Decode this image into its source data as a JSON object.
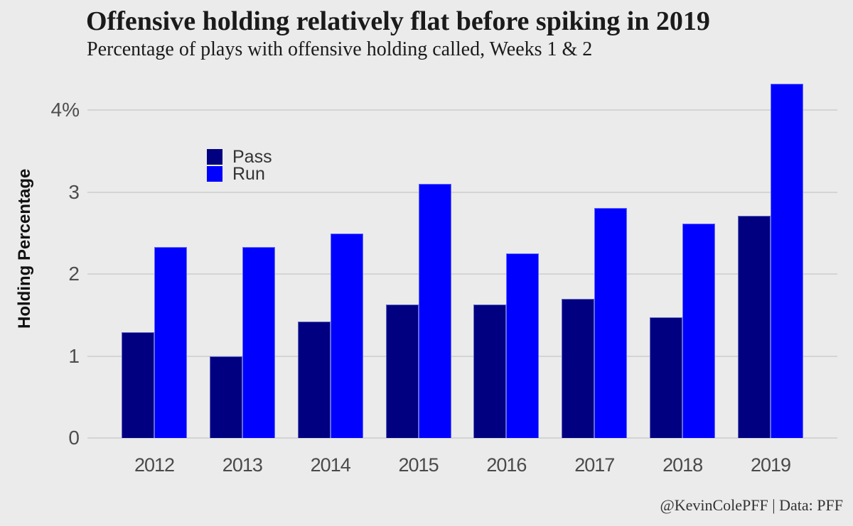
{
  "colors": {
    "background": "#EBEBEB",
    "gridline": "#D4D4D4",
    "title_text": "#1A1A1A",
    "axis_text": "#4A4A4A",
    "legend_text": "#333333",
    "pass_bar": "#000080",
    "run_bar": "#0000FF"
  },
  "chart_data": {
    "type": "bar",
    "title": "Offensive holding relatively flat before spiking in 2019",
    "subtitle": "Percentage of plays with offensive holding called, Weeks 1 & 2",
    "ylabel": "Holding Percentage",
    "xlabel": "",
    "caption": "@KevinColePFF | Data: PFF",
    "categories": [
      "2012",
      "2013",
      "2014",
      "2015",
      "2016",
      "2017",
      "2018",
      "2019"
    ],
    "series": [
      {
        "name": "Pass",
        "color": "#000080",
        "values": [
          1.29,
          1.0,
          1.42,
          1.63,
          1.63,
          1.7,
          1.47,
          2.71
        ]
      },
      {
        "name": "Run",
        "color": "#0000FF",
        "values": [
          2.33,
          2.33,
          2.5,
          3.1,
          2.25,
          2.81,
          2.62,
          4.32
        ]
      }
    ],
    "yticks": [
      {
        "value": 0,
        "label": "0"
      },
      {
        "value": 1,
        "label": "1"
      },
      {
        "value": 2,
        "label": "2"
      },
      {
        "value": 3,
        "label": "3"
      },
      {
        "value": 4,
        "label": "4%"
      }
    ],
    "ylim": [
      0,
      4.48
    ],
    "grid": "horizontal-major-only",
    "legend_position": "inside-top-left",
    "bar_mode": "grouped"
  }
}
